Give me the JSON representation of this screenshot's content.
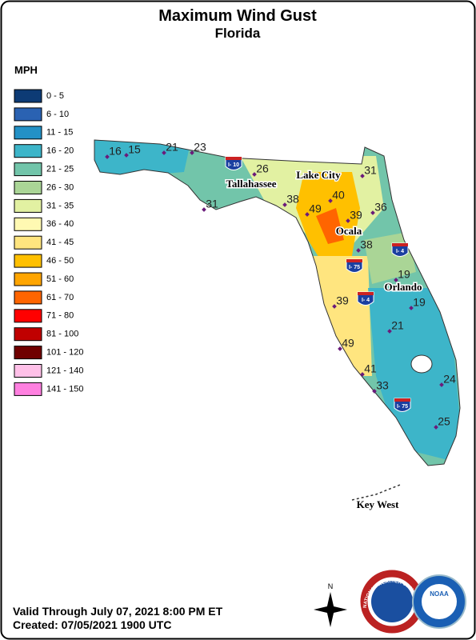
{
  "header": {
    "title": "Maximum Wind Gust",
    "subtitle": "Florida"
  },
  "legend": {
    "title": "MPH",
    "items": [
      {
        "label": "0 - 5",
        "color": "#0d3b75"
      },
      {
        "label": "6 - 10",
        "color": "#2a62b2"
      },
      {
        "label": "11 - 15",
        "color": "#2391c6"
      },
      {
        "label": "16 - 20",
        "color": "#3db5c9"
      },
      {
        "label": "21 - 25",
        "color": "#72c5aa"
      },
      {
        "label": "26 - 30",
        "color": "#aad596"
      },
      {
        "label": "31 - 35",
        "color": "#e2f1a2"
      },
      {
        "label": "36 - 40",
        "color": "#fff9b2"
      },
      {
        "label": "41 - 45",
        "color": "#ffe57f"
      },
      {
        "label": "46 - 50",
        "color": "#ffc000"
      },
      {
        "label": "51 - 60",
        "color": "#ffa500"
      },
      {
        "label": "61 - 70",
        "color": "#ff6500"
      },
      {
        "label": "71 - 80",
        "color": "#ff0000"
      },
      {
        "label": "81 - 100",
        "color": "#c00000"
      },
      {
        "label": "101 - 120",
        "color": "#700000"
      },
      {
        "label": "121 - 140",
        "color": "#ffc0e8"
      },
      {
        "label": "141 - 150",
        "color": "#ff80e0"
      }
    ]
  },
  "cities": [
    "Tallahassee",
    "Lake City",
    "Ocala",
    "Orlando",
    "Key West"
  ],
  "stations": [
    16,
    15,
    21,
    23,
    26,
    31,
    38,
    49,
    40,
    39,
    36,
    31,
    38,
    19,
    19,
    39,
    21,
    49,
    41,
    33,
    24,
    25
  ],
  "interstates": [
    "I- 10",
    "I- 75",
    "I- 4",
    "I- 4",
    "I- 75"
  ],
  "compass": "N",
  "logos": {
    "nws": "NATIONAL WEATHER SERVICE",
    "noaa": "NOAA"
  },
  "footer": {
    "valid": "Valid Through July 07, 2021 8:00 PM ET",
    "created": "Created: 07/05/2021 1900 UTC"
  }
}
